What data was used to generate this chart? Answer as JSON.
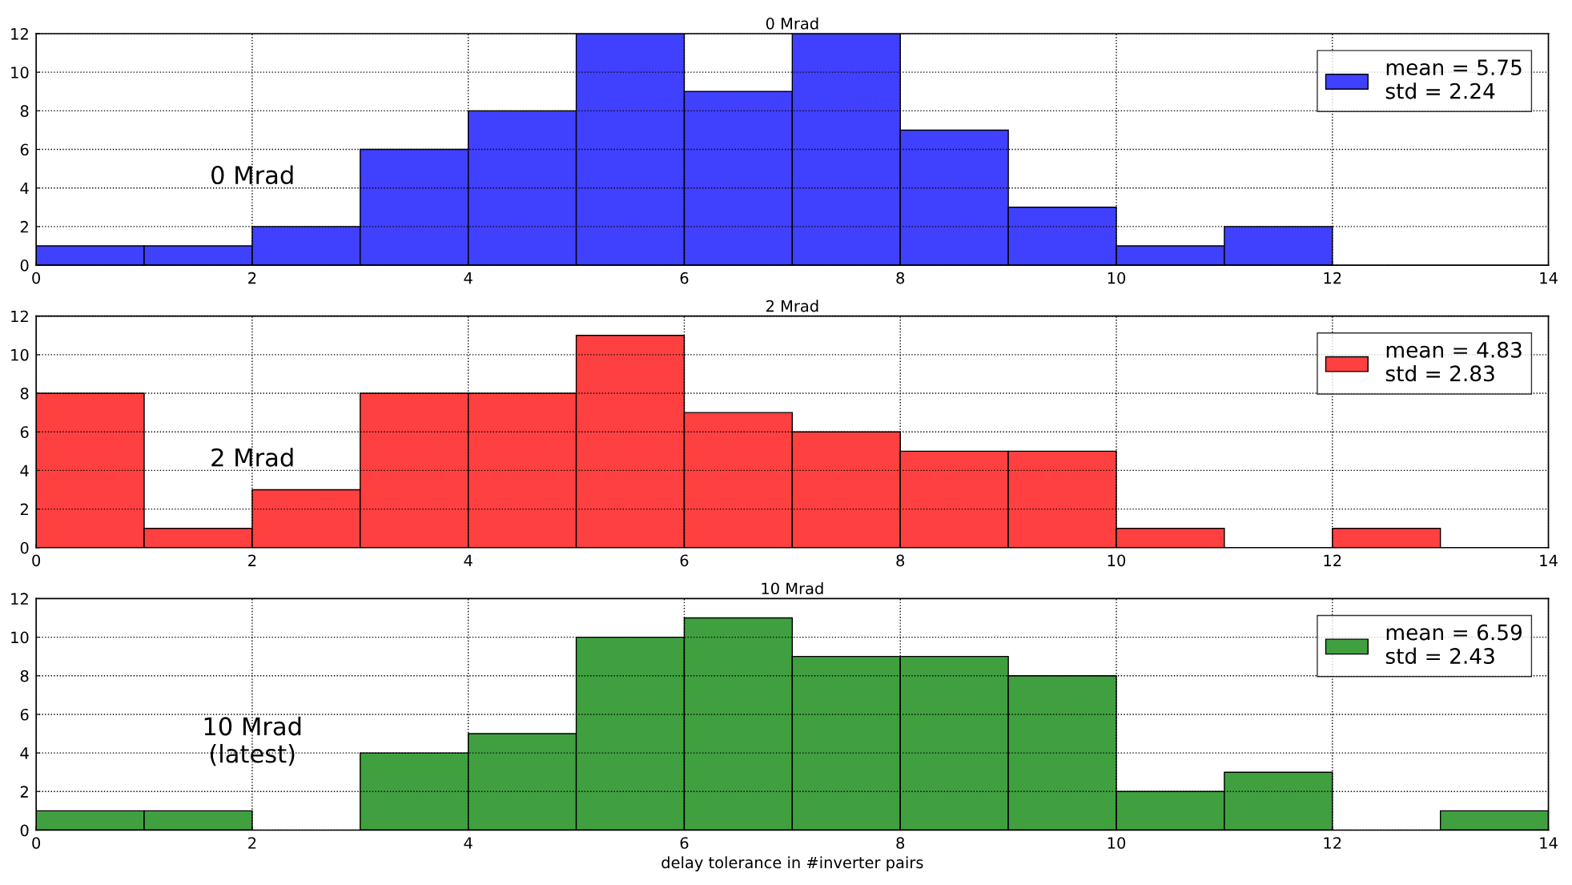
{
  "chart_data": [
    {
      "type": "histogram",
      "title": "0 Mrad",
      "bins": [
        0,
        1,
        2,
        3,
        4,
        5,
        6,
        7,
        8,
        9,
        10,
        11,
        12,
        13,
        14
      ],
      "series": [
        {
          "name": "mean = 5.75\nstd = 2.24",
          "color": "#4040ff",
          "values": [
            1,
            1,
            2,
            6,
            8,
            12,
            9,
            12,
            7,
            3,
            1,
            2,
            0,
            0
          ]
        }
      ],
      "annotations": [
        "0 Mrad"
      ],
      "xlim": [
        0,
        14
      ],
      "ylim": [
        0,
        12
      ],
      "xticks": [
        0,
        2,
        4,
        6,
        8,
        10,
        12,
        14
      ],
      "yticks": [
        0,
        2,
        4,
        6,
        8,
        10,
        12
      ],
      "grid": true,
      "line_style": "dotted",
      "legend": "top right"
    },
    {
      "type": "histogram",
      "title": "2 Mrad",
      "bins": [
        0,
        1,
        2,
        3,
        4,
        5,
        6,
        7,
        8,
        9,
        10,
        11,
        12,
        13,
        14
      ],
      "series": [
        {
          "name": "mean = 4.83\nstd = 2.83",
          "color": "#ff4040",
          "values": [
            8,
            1,
            3,
            8,
            8,
            11,
            7,
            6,
            5,
            5,
            1,
            0,
            1,
            0
          ]
        }
      ],
      "annotations": [
        "2 Mrad"
      ],
      "xlim": [
        0,
        14
      ],
      "ylim": [
        0,
        12
      ],
      "xticks": [
        0,
        2,
        4,
        6,
        8,
        10,
        12,
        14
      ],
      "yticks": [
        0,
        2,
        4,
        6,
        8,
        10,
        12
      ],
      "grid": true,
      "line_style": "dotted",
      "legend": "top right"
    },
    {
      "type": "histogram",
      "title": "10 Mrad",
      "xlabel": "delay tolerance in #inverter pairs",
      "bins": [
        0,
        1,
        2,
        3,
        4,
        5,
        6,
        7,
        8,
        9,
        10,
        11,
        12,
        13,
        14
      ],
      "series": [
        {
          "name": "mean = 6.59\nstd = 2.43",
          "color": "#40a040",
          "values": [
            1,
            1,
            0,
            4,
            5,
            10,
            11,
            9,
            9,
            8,
            2,
            3,
            0,
            1
          ]
        }
      ],
      "annotations": [
        "10 Mrad\n(latest)"
      ],
      "xlim": [
        0,
        14
      ],
      "ylim": [
        0,
        12
      ],
      "xticks": [
        0,
        2,
        4,
        6,
        8,
        10,
        12,
        14
      ],
      "yticks": [
        0,
        2,
        4,
        6,
        8,
        10,
        12
      ],
      "grid": true,
      "line_style": "dotted",
      "legend": "top right"
    }
  ]
}
